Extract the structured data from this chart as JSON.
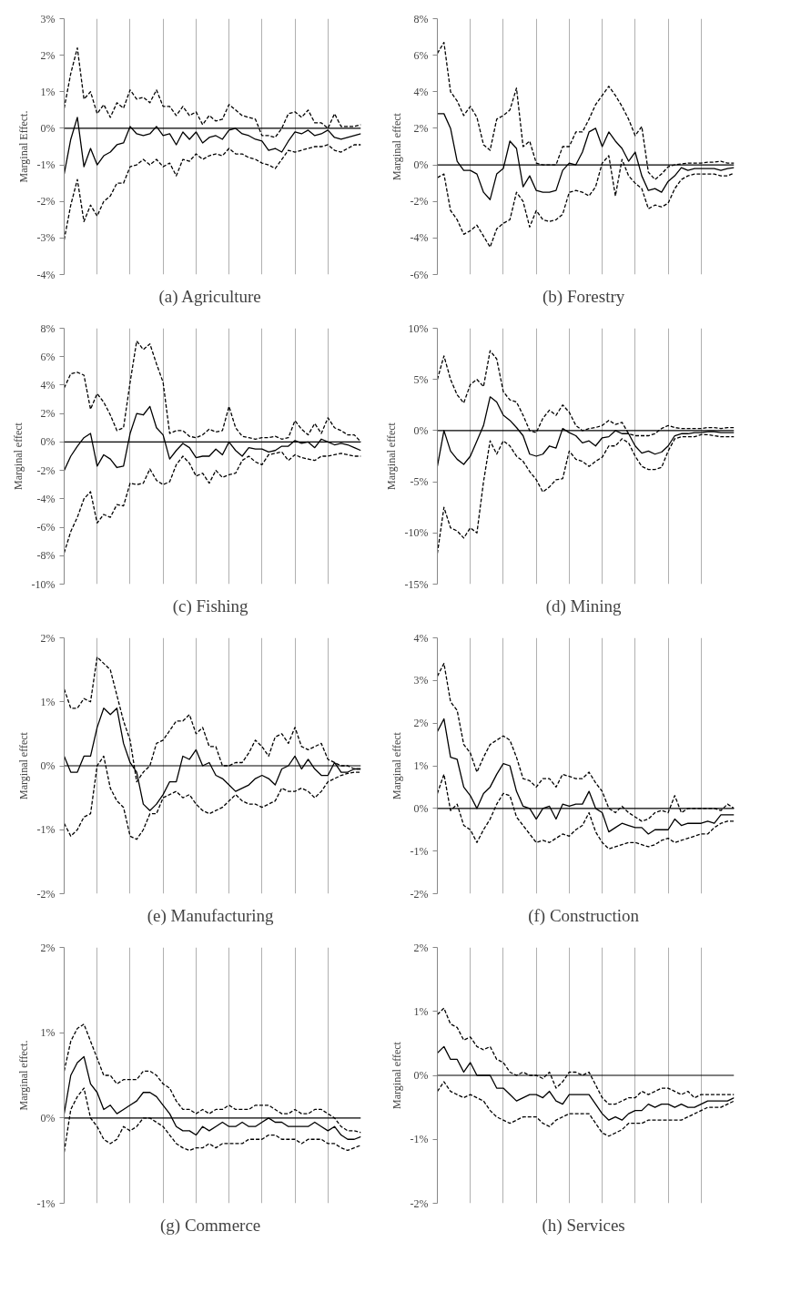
{
  "chart_data": [
    {
      "type": "line",
      "title": "(a)  Agriculture",
      "ylabel": "Marginal Effect.",
      "categories": [
        null,
        null,
        null,
        null,
        null,
        null,
        null,
        null,
        null,
        null,
        null,
        null,
        null,
        null,
        null,
        null,
        null,
        null,
        null,
        null,
        null,
        null,
        null,
        null,
        null,
        null,
        null,
        null,
        null,
        null,
        null,
        null,
        null,
        null,
        null,
        null,
        null,
        null,
        null,
        null,
        null,
        null,
        null,
        null,
        null,
        null
      ],
      "ylim": [
        -4,
        3
      ],
      "yticks": [
        {
          "value": -4,
          "label": "-4%"
        },
        {
          "value": -3,
          "label": "-3%"
        },
        {
          "value": -2,
          "label": "-2%"
        },
        {
          "value": -1,
          "label": "-1%"
        },
        {
          "value": 0,
          "label": "0%"
        },
        {
          "value": 1,
          "label": "1%"
        },
        {
          "value": 2,
          "label": "2%"
        },
        {
          "value": 3,
          "label": "3%"
        }
      ],
      "grid": "x",
      "ref_lines": [
        {
          "axis": "y",
          "value": 0,
          "color": "#000000"
        }
      ],
      "series": [
        {
          "color": "#000000",
          "line_style": "dashed",
          "values": [
            0.55,
            1.5,
            2.2,
            0.8,
            1.0,
            0.4,
            0.65,
            0.3,
            0.7,
            0.55,
            1.05,
            0.8,
            0.85,
            0.7,
            1.05,
            0.6,
            0.6,
            0.35,
            0.6,
            0.35,
            0.45,
            0.1,
            0.35,
            0.2,
            0.25,
            0.65,
            0.5,
            0.35,
            0.3,
            0.25,
            -0.2,
            -0.2,
            -0.25,
            0.0,
            0.4,
            0.45,
            0.3,
            0.5,
            0.15,
            0.15,
            0.0,
            0.4,
            0.05,
            0.05,
            0.05,
            0.1
          ]
        },
        {
          "color": "#000000",
          "line_style": "solid",
          "values": [
            -1.25,
            -0.3,
            0.3,
            -1.05,
            -0.55,
            -1.0,
            -0.75,
            -0.65,
            -0.45,
            -0.4,
            0.05,
            -0.15,
            -0.2,
            -0.15,
            0.05,
            -0.2,
            -0.15,
            -0.45,
            -0.1,
            -0.3,
            -0.1,
            -0.4,
            -0.25,
            -0.2,
            -0.3,
            -0.05,
            0.0,
            -0.15,
            -0.2,
            -0.3,
            -0.35,
            -0.6,
            -0.55,
            -0.65,
            -0.35,
            -0.1,
            -0.15,
            -0.05,
            -0.2,
            -0.15,
            -0.05,
            -0.25,
            -0.3,
            -0.25,
            -0.2,
            -0.15
          ]
        },
        {
          "color": "#000000",
          "line_style": "dashed",
          "values": [
            -3.05,
            -2.1,
            -1.4,
            -2.55,
            -2.1,
            -2.4,
            -2.0,
            -1.85,
            -1.5,
            -1.5,
            -1.05,
            -1.0,
            -0.85,
            -1.0,
            -0.85,
            -1.05,
            -0.95,
            -1.3,
            -0.85,
            -0.9,
            -0.7,
            -0.85,
            -0.75,
            -0.7,
            -0.75,
            -0.55,
            -0.7,
            -0.7,
            -0.8,
            -0.85,
            -0.95,
            -1.0,
            -1.1,
            -0.85,
            -0.6,
            -0.65,
            -0.6,
            -0.55,
            -0.5,
            -0.5,
            -0.45,
            -0.6,
            -0.65,
            -0.55,
            -0.45,
            -0.45
          ]
        }
      ]
    },
    {
      "type": "line",
      "title": "(b)  Forestry",
      "ylabel": "Marginal effect",
      "categories": [
        null,
        null,
        null,
        null,
        null,
        null,
        null,
        null,
        null,
        null,
        null,
        null,
        null,
        null,
        null,
        null,
        null,
        null,
        null,
        null,
        null,
        null,
        null,
        null,
        null,
        null,
        null,
        null,
        null,
        null,
        null,
        null,
        null,
        null,
        null,
        null,
        null,
        null,
        null,
        null,
        null,
        null,
        null,
        null,
        null,
        null
      ],
      "ylim": [
        -6,
        8
      ],
      "yticks": [
        {
          "value": -6,
          "label": "-6%"
        },
        {
          "value": -4,
          "label": "-4%"
        },
        {
          "value": -2,
          "label": "-2%"
        },
        {
          "value": 0,
          "label": "0%"
        },
        {
          "value": 2,
          "label": "2%"
        },
        {
          "value": 4,
          "label": "4%"
        },
        {
          "value": 6,
          "label": "6%"
        },
        {
          "value": 8,
          "label": "8%"
        }
      ],
      "grid": "x",
      "ref_lines": [
        {
          "axis": "y",
          "value": 0,
          "color": "#000000"
        }
      ],
      "series": [
        {
          "color": "#000000",
          "line_style": "dashed",
          "values": [
            6.1,
            6.7,
            4.0,
            3.5,
            2.7,
            3.2,
            2.6,
            1.1,
            0.8,
            2.5,
            2.7,
            3.0,
            4.2,
            1.0,
            1.3,
            0.1,
            0.0,
            0.0,
            0.0,
            1.0,
            1.0,
            1.8,
            1.8,
            2.5,
            3.3,
            3.8,
            4.3,
            3.8,
            3.2,
            2.5,
            1.6,
            2.1,
            -0.4,
            -0.8,
            -0.5,
            -0.1,
            0.0,
            0.05,
            0.1,
            0.1,
            0.1,
            0.15,
            0.15,
            0.2,
            0.1,
            0.1
          ]
        },
        {
          "color": "#000000",
          "line_style": "solid",
          "values": [
            2.8,
            2.8,
            2.0,
            0.2,
            -0.3,
            -0.3,
            -0.5,
            -1.5,
            -1.9,
            -0.5,
            -0.2,
            1.3,
            0.9,
            -1.2,
            -0.6,
            -1.4,
            -1.5,
            -1.5,
            -1.4,
            -0.3,
            0.1,
            0.0,
            0.7,
            1.8,
            2.0,
            1.0,
            1.8,
            1.3,
            0.9,
            0.2,
            0.7,
            -0.6,
            -1.4,
            -1.3,
            -1.5,
            -0.9,
            -0.6,
            -0.15,
            -0.3,
            -0.2,
            -0.2,
            -0.2,
            -0.2,
            -0.3,
            -0.2,
            -0.15
          ]
        },
        {
          "color": "#000000",
          "line_style": "dashed",
          "values": [
            -0.7,
            -0.5,
            -2.5,
            -3.0,
            -3.8,
            -3.6,
            -3.3,
            -3.9,
            -4.5,
            -3.5,
            -3.2,
            -3.0,
            -1.5,
            -2.0,
            -3.4,
            -2.5,
            -3.0,
            -3.1,
            -3.0,
            -2.7,
            -1.5,
            -1.4,
            -1.5,
            -1.7,
            -1.2,
            0.1,
            0.5,
            -1.7,
            0.3,
            -0.6,
            -1.0,
            -1.3,
            -2.4,
            -2.2,
            -2.3,
            -2.1,
            -1.3,
            -0.8,
            -0.6,
            -0.5,
            -0.5,
            -0.5,
            -0.5,
            -0.6,
            -0.6,
            -0.45
          ]
        }
      ]
    },
    {
      "type": "line",
      "title": "(c)  Fishing",
      "ylabel": "Marginal effect",
      "categories": [
        null,
        null,
        null,
        null,
        null,
        null,
        null,
        null,
        null,
        null,
        null,
        null,
        null,
        null,
        null,
        null,
        null,
        null,
        null,
        null,
        null,
        null,
        null,
        null,
        null,
        null,
        null,
        null,
        null,
        null,
        null,
        null,
        null,
        null,
        null,
        null,
        null,
        null,
        null,
        null,
        null,
        null,
        null,
        null,
        null,
        null
      ],
      "ylim": [
        -10,
        8
      ],
      "yticks": [
        {
          "value": -10,
          "label": "-10%"
        },
        {
          "value": -8,
          "label": "-8%"
        },
        {
          "value": -6,
          "label": "-6%"
        },
        {
          "value": -4,
          "label": "-4%"
        },
        {
          "value": -2,
          "label": "-2%"
        },
        {
          "value": 0,
          "label": "0%"
        },
        {
          "value": 2,
          "label": "2%"
        },
        {
          "value": 4,
          "label": "4%"
        },
        {
          "value": 6,
          "label": "6%"
        },
        {
          "value": 8,
          "label": "8%"
        }
      ],
      "grid": "x",
      "ref_lines": [
        {
          "axis": "y",
          "value": 0,
          "color": "#000000"
        }
      ],
      "series": [
        {
          "color": "#000000",
          "line_style": "dashed",
          "values": [
            3.8,
            4.8,
            4.9,
            4.7,
            2.3,
            3.4,
            2.8,
            1.9,
            0.8,
            1.0,
            4.2,
            7.1,
            6.5,
            6.9,
            5.5,
            4.2,
            0.6,
            0.8,
            0.8,
            0.4,
            0.3,
            0.5,
            0.9,
            0.7,
            0.8,
            2.5,
            1.0,
            0.4,
            0.3,
            0.2,
            0.3,
            0.3,
            0.4,
            0.2,
            0.3,
            1.5,
            0.9,
            0.5,
            1.3,
            0.6,
            1.7,
            1.0,
            0.8,
            0.5,
            0.5,
            0.0
          ]
        },
        {
          "color": "#000000",
          "line_style": "solid",
          "values": [
            -2.0,
            -1.0,
            -0.3,
            0.3,
            0.6,
            -1.7,
            -0.9,
            -1.2,
            -1.8,
            -1.7,
            0.6,
            2.0,
            1.9,
            2.5,
            1.0,
            0.5,
            -1.2,
            -0.6,
            -0.1,
            -0.4,
            -1.1,
            -1.0,
            -1.0,
            -0.5,
            -0.9,
            0.0,
            -0.6,
            -1.0,
            -0.4,
            -0.5,
            -0.5,
            -0.7,
            -0.6,
            -0.3,
            -0.3,
            0.1,
            -0.1,
            0.0,
            -0.4,
            0.2,
            0.0,
            -0.2,
            -0.1,
            -0.2,
            -0.4,
            -0.6
          ]
        },
        {
          "color": "#000000",
          "line_style": "dashed",
          "values": [
            -7.8,
            -6.3,
            -5.3,
            -4.0,
            -3.5,
            -5.7,
            -5.1,
            -5.3,
            -4.4,
            -4.5,
            -2.9,
            -3.0,
            -2.9,
            -1.9,
            -2.7,
            -3.0,
            -2.8,
            -1.6,
            -1.0,
            -1.5,
            -2.4,
            -2.2,
            -2.9,
            -2.0,
            -2.5,
            -2.3,
            -2.2,
            -1.3,
            -1.0,
            -1.4,
            -1.6,
            -0.9,
            -0.8,
            -0.7,
            -1.3,
            -0.9,
            -1.1,
            -1.2,
            -1.3,
            -1.0,
            -1.0,
            -0.9,
            -0.8,
            -0.9,
            -1.0,
            -1.0
          ]
        }
      ]
    },
    {
      "type": "line",
      "title": "(d)  Mining",
      "ylabel": "Marginal effect",
      "categories": [
        null,
        null,
        null,
        null,
        null,
        null,
        null,
        null,
        null,
        null,
        null,
        null,
        null,
        null,
        null,
        null,
        null,
        null,
        null,
        null,
        null,
        null,
        null,
        null,
        null,
        null,
        null,
        null,
        null,
        null,
        null,
        null,
        null,
        null,
        null,
        null,
        null,
        null,
        null,
        null,
        null,
        null,
        null,
        null,
        null,
        null
      ],
      "ylim": [
        -15,
        10
      ],
      "yticks": [
        {
          "value": -15,
          "label": "-15%"
        },
        {
          "value": -10,
          "label": "-10%"
        },
        {
          "value": -5,
          "label": "-5%"
        },
        {
          "value": 0,
          "label": "0%"
        },
        {
          "value": 5,
          "label": "5%"
        },
        {
          "value": 10,
          "label": "10%"
        }
      ],
      "grid": "x",
      "ref_lines": [
        {
          "axis": "y",
          "value": 0,
          "color": "#000000"
        }
      ],
      "series": [
        {
          "color": "#000000",
          "line_style": "dashed",
          "values": [
            5.0,
            7.3,
            5.0,
            3.5,
            2.7,
            4.5,
            5.0,
            4.3,
            7.8,
            7.0,
            3.8,
            3.0,
            2.8,
            1.5,
            0.0,
            -0.2,
            1.2,
            2.0,
            1.5,
            2.5,
            1.8,
            0.5,
            0.0,
            0.2,
            0.3,
            0.5,
            1.0,
            0.6,
            0.8,
            -0.3,
            -0.5,
            -0.5,
            -0.5,
            -0.3,
            0.2,
            0.5,
            0.3,
            0.2,
            0.2,
            0.2,
            0.2,
            0.3,
            0.3,
            0.2,
            0.3,
            0.3
          ]
        },
        {
          "color": "#000000",
          "line_style": "solid",
          "values": [
            -3.5,
            0.0,
            -2.0,
            -2.8,
            -3.3,
            -2.5,
            -1.0,
            0.5,
            3.3,
            2.8,
            1.5,
            1.0,
            0.3,
            -0.5,
            -2.3,
            -2.5,
            -2.3,
            -1.5,
            -1.7,
            0.2,
            -0.2,
            -0.5,
            -1.2,
            -1.0,
            -1.5,
            -0.7,
            -0.6,
            0.0,
            -0.3,
            -0.3,
            -1.5,
            -2.2,
            -2.0,
            -2.3,
            -2.1,
            -1.5,
            -0.5,
            -0.3,
            -0.3,
            -0.2,
            -0.2,
            -0.1,
            -0.1,
            -0.2,
            -0.2,
            -0.2
          ]
        },
        {
          "color": "#000000",
          "line_style": "dashed",
          "values": [
            -12.0,
            -7.5,
            -9.5,
            -9.8,
            -10.5,
            -9.5,
            -10.0,
            -5.0,
            -1.0,
            -2.3,
            -1.0,
            -1.5,
            -2.5,
            -3.0,
            -4.0,
            -4.8,
            -6.0,
            -5.5,
            -4.8,
            -4.7,
            -2.0,
            -2.8,
            -3.0,
            -3.5,
            -3.0,
            -2.6,
            -1.5,
            -1.5,
            -0.8,
            -1.2,
            -2.5,
            -3.5,
            -3.8,
            -3.8,
            -3.6,
            -2.0,
            -0.8,
            -0.6,
            -0.6,
            -0.6,
            -0.4,
            -0.4,
            -0.5,
            -0.6,
            -0.6,
            -0.6
          ]
        }
      ]
    },
    {
      "type": "line",
      "title": "(e)  Manufacturing",
      "ylabel": "Marginal effect",
      "categories": [
        null,
        null,
        null,
        null,
        null,
        null,
        null,
        null,
        null,
        null,
        null,
        null,
        null,
        null,
        null,
        null,
        null,
        null,
        null,
        null,
        null,
        null,
        null,
        null,
        null,
        null,
        null,
        null,
        null,
        null,
        null,
        null,
        null,
        null,
        null,
        null,
        null,
        null,
        null,
        null,
        null,
        null,
        null,
        null,
        null,
        null
      ],
      "ylim": [
        -2,
        2
      ],
      "yticks": [
        {
          "value": -2,
          "label": "-2%"
        },
        {
          "value": -1,
          "label": "-1%"
        },
        {
          "value": 0,
          "label": "0%"
        },
        {
          "value": 1,
          "label": "1%"
        },
        {
          "value": 2,
          "label": "2%"
        }
      ],
      "grid": "x",
      "ref_lines": [
        {
          "axis": "y",
          "value": 0,
          "color": "#000000"
        }
      ],
      "series": [
        {
          "color": "#000000",
          "line_style": "dashed",
          "values": [
            1.2,
            0.9,
            0.9,
            1.05,
            1.0,
            1.7,
            1.6,
            1.5,
            1.1,
            0.7,
            0.4,
            -0.25,
            -0.1,
            0.0,
            0.35,
            0.4,
            0.55,
            0.7,
            0.7,
            0.8,
            0.5,
            0.6,
            0.3,
            0.3,
            0.0,
            0.0,
            0.05,
            0.05,
            0.2,
            0.4,
            0.3,
            0.15,
            0.45,
            0.5,
            0.35,
            0.6,
            0.3,
            0.25,
            0.3,
            0.35,
            0.1,
            0.05,
            0.0,
            0.0,
            -0.05,
            -0.05
          ]
        },
        {
          "color": "#000000",
          "line_style": "solid",
          "values": [
            0.15,
            -0.1,
            -0.1,
            0.15,
            0.15,
            0.6,
            0.9,
            0.8,
            0.9,
            0.35,
            0.05,
            -0.1,
            -0.6,
            -0.7,
            -0.6,
            -0.45,
            -0.25,
            -0.25,
            0.15,
            0.1,
            0.25,
            0.0,
            0.05,
            -0.15,
            -0.2,
            -0.3,
            -0.4,
            -0.35,
            -0.3,
            -0.2,
            -0.15,
            -0.2,
            -0.3,
            -0.05,
            0.0,
            0.15,
            -0.05,
            0.1,
            -0.05,
            -0.15,
            -0.15,
            0.05,
            -0.1,
            -0.1,
            -0.05,
            -0.05
          ]
        },
        {
          "color": "#000000",
          "line_style": "dashed",
          "values": [
            -0.9,
            -1.1,
            -1.0,
            -0.8,
            -0.75,
            0.0,
            0.15,
            -0.35,
            -0.55,
            -0.65,
            -1.1,
            -1.15,
            -1.0,
            -0.75,
            -0.75,
            -0.5,
            -0.45,
            -0.4,
            -0.5,
            -0.45,
            -0.6,
            -0.7,
            -0.75,
            -0.7,
            -0.65,
            -0.55,
            -0.45,
            -0.55,
            -0.6,
            -0.6,
            -0.65,
            -0.6,
            -0.55,
            -0.35,
            -0.4,
            -0.4,
            -0.35,
            -0.4,
            -0.5,
            -0.4,
            -0.25,
            -0.2,
            -0.15,
            -0.12,
            -0.1,
            -0.1
          ]
        }
      ]
    },
    {
      "type": "line",
      "title": "(f)  Construction",
      "ylabel": "Marginal effect",
      "categories": [
        null,
        null,
        null,
        null,
        null,
        null,
        null,
        null,
        null,
        null,
        null,
        null,
        null,
        null,
        null,
        null,
        null,
        null,
        null,
        null,
        null,
        null,
        null,
        null,
        null,
        null,
        null,
        null,
        null,
        null,
        null,
        null,
        null,
        null,
        null,
        null,
        null,
        null,
        null,
        null,
        null,
        null,
        null,
        null,
        null,
        null
      ],
      "ylim": [
        -2,
        4
      ],
      "yticks": [
        {
          "value": -2,
          "label": "-2%"
        },
        {
          "value": -1,
          "label": "-1%"
        },
        {
          "value": 0,
          "label": "0%"
        },
        {
          "value": 1,
          "label": "1%"
        },
        {
          "value": 2,
          "label": "2%"
        },
        {
          "value": 3,
          "label": "3%"
        },
        {
          "value": 4,
          "label": "4%"
        }
      ],
      "grid": "x",
      "ref_lines": [
        {
          "axis": "y",
          "value": 0,
          "color": "#000000"
        }
      ],
      "series": [
        {
          "color": "#000000",
          "line_style": "dashed",
          "values": [
            3.1,
            3.4,
            2.5,
            2.3,
            1.5,
            1.3,
            0.85,
            1.2,
            1.5,
            1.6,
            1.7,
            1.6,
            1.2,
            0.7,
            0.65,
            0.5,
            0.7,
            0.7,
            0.5,
            0.8,
            0.75,
            0.7,
            0.7,
            0.85,
            0.6,
            0.4,
            0.0,
            -0.1,
            0.05,
            -0.1,
            -0.2,
            -0.3,
            -0.25,
            -0.1,
            -0.05,
            -0.1,
            0.3,
            -0.1,
            0.0,
            0.0,
            0.0,
            0.0,
            0.0,
            -0.05,
            0.1,
            0.0
          ]
        },
        {
          "color": "#000000",
          "line_style": "solid",
          "values": [
            1.8,
            2.1,
            1.2,
            1.15,
            0.5,
            0.3,
            0.0,
            0.35,
            0.5,
            0.8,
            1.05,
            1.0,
            0.4,
            0.05,
            0.0,
            -0.25,
            0.0,
            0.05,
            -0.25,
            0.1,
            0.05,
            0.1,
            0.1,
            0.4,
            0.0,
            -0.1,
            -0.55,
            -0.45,
            -0.35,
            -0.4,
            -0.45,
            -0.45,
            -0.6,
            -0.5,
            -0.5,
            -0.5,
            -0.25,
            -0.4,
            -0.35,
            -0.35,
            -0.35,
            -0.3,
            -0.35,
            -0.15,
            -0.15,
            -0.15
          ]
        },
        {
          "color": "#000000",
          "line_style": "dashed",
          "values": [
            0.35,
            0.8,
            -0.05,
            0.1,
            -0.4,
            -0.5,
            -0.8,
            -0.5,
            -0.25,
            0.1,
            0.35,
            0.3,
            -0.2,
            -0.4,
            -0.6,
            -0.8,
            -0.75,
            -0.8,
            -0.7,
            -0.6,
            -0.65,
            -0.5,
            -0.4,
            -0.1,
            -0.55,
            -0.8,
            -0.95,
            -0.9,
            -0.85,
            -0.8,
            -0.8,
            -0.85,
            -0.9,
            -0.85,
            -0.75,
            -0.7,
            -0.8,
            -0.75,
            -0.7,
            -0.65,
            -0.6,
            -0.6,
            -0.45,
            -0.35,
            -0.3,
            -0.3
          ]
        }
      ]
    },
    {
      "type": "line",
      "title": "(g)  Commerce",
      "ylabel": "Marginal effect.",
      "categories": [
        null,
        null,
        null,
        null,
        null,
        null,
        null,
        null,
        null,
        null,
        null,
        null,
        null,
        null,
        null,
        null,
        null,
        null,
        null,
        null,
        null,
        null,
        null,
        null,
        null,
        null,
        null,
        null,
        null,
        null,
        null,
        null,
        null,
        null,
        null,
        null,
        null,
        null,
        null,
        null,
        null,
        null,
        null,
        null,
        null,
        null
      ],
      "ylim": [
        -1,
        2
      ],
      "yticks": [
        {
          "value": -1,
          "label": "-1%"
        },
        {
          "value": 0,
          "label": "0%"
        },
        {
          "value": 1,
          "label": "1%"
        },
        {
          "value": 2,
          "label": "2%"
        }
      ],
      "grid": "x",
      "ref_lines": [
        {
          "axis": "y",
          "value": 0,
          "color": "#000000"
        }
      ],
      "series": [
        {
          "color": "#000000",
          "line_style": "dashed",
          "values": [
            0.55,
            0.9,
            1.05,
            1.1,
            0.9,
            0.7,
            0.5,
            0.5,
            0.4,
            0.45,
            0.45,
            0.45,
            0.55,
            0.55,
            0.5,
            0.4,
            0.35,
            0.2,
            0.1,
            0.1,
            0.05,
            0.1,
            0.05,
            0.1,
            0.1,
            0.15,
            0.1,
            0.1,
            0.1,
            0.15,
            0.15,
            0.15,
            0.1,
            0.05,
            0.05,
            0.1,
            0.05,
            0.05,
            0.1,
            0.1,
            0.05,
            0.0,
            -0.1,
            -0.15,
            -0.15,
            -0.17
          ]
        },
        {
          "color": "#000000",
          "line_style": "solid",
          "values": [
            0.05,
            0.5,
            0.65,
            0.72,
            0.4,
            0.3,
            0.1,
            0.15,
            0.05,
            0.1,
            0.15,
            0.2,
            0.3,
            0.3,
            0.25,
            0.15,
            0.05,
            -0.1,
            -0.15,
            -0.15,
            -0.2,
            -0.1,
            -0.15,
            -0.1,
            -0.05,
            -0.1,
            -0.1,
            -0.05,
            -0.1,
            -0.1,
            -0.05,
            0.0,
            -0.05,
            -0.05,
            -0.1,
            -0.1,
            -0.1,
            -0.1,
            -0.05,
            -0.1,
            -0.15,
            -0.1,
            -0.2,
            -0.25,
            -0.25,
            -0.22
          ]
        },
        {
          "color": "#000000",
          "line_style": "dashed",
          "values": [
            -0.4,
            0.1,
            0.25,
            0.35,
            0.0,
            -0.1,
            -0.25,
            -0.3,
            -0.25,
            -0.1,
            -0.15,
            -0.1,
            0.0,
            0.0,
            -0.05,
            -0.1,
            -0.2,
            -0.3,
            -0.35,
            -0.38,
            -0.35,
            -0.35,
            -0.3,
            -0.35,
            -0.3,
            -0.3,
            -0.3,
            -0.3,
            -0.25,
            -0.25,
            -0.25,
            -0.2,
            -0.2,
            -0.25,
            -0.25,
            -0.25,
            -0.3,
            -0.25,
            -0.25,
            -0.25,
            -0.3,
            -0.3,
            -0.35,
            -0.38,
            -0.35,
            -0.32
          ]
        }
      ]
    },
    {
      "type": "line",
      "title": "(h)  Services",
      "ylabel": "Marginal effect",
      "categories": [
        null,
        null,
        null,
        null,
        null,
        null,
        null,
        null,
        null,
        null,
        null,
        null,
        null,
        null,
        null,
        null,
        null,
        null,
        null,
        null,
        null,
        null,
        null,
        null,
        null,
        null,
        null,
        null,
        null,
        null,
        null,
        null,
        null,
        null,
        null,
        null,
        null,
        null,
        null,
        null,
        null,
        null,
        null,
        null,
        null,
        null
      ],
      "ylim": [
        -2,
        2
      ],
      "yticks": [
        {
          "value": -2,
          "label": "-2%"
        },
        {
          "value": -1,
          "label": "-1%"
        },
        {
          "value": 0,
          "label": "0%"
        },
        {
          "value": 1,
          "label": "1%"
        },
        {
          "value": 2,
          "label": "2%"
        }
      ],
      "grid": "x",
      "ref_lines": [
        {
          "axis": "y",
          "value": 0,
          "color": "#000000"
        }
      ],
      "series": [
        {
          "color": "#000000",
          "line_style": "dashed",
          "values": [
            0.95,
            1.05,
            0.8,
            0.75,
            0.55,
            0.6,
            0.45,
            0.4,
            0.45,
            0.25,
            0.2,
            0.05,
            0.0,
            0.05,
            0.0,
            0.0,
            -0.05,
            0.05,
            -0.2,
            -0.1,
            0.05,
            0.05,
            0.0,
            0.05,
            -0.15,
            -0.35,
            -0.45,
            -0.45,
            -0.4,
            -0.35,
            -0.35,
            -0.25,
            -0.3,
            -0.25,
            -0.2,
            -0.2,
            -0.25,
            -0.3,
            -0.25,
            -0.35,
            -0.3,
            -0.3,
            -0.3,
            -0.3,
            -0.3,
            -0.3
          ]
        },
        {
          "color": "#000000",
          "line_style": "solid",
          "values": [
            0.35,
            0.45,
            0.25,
            0.25,
            0.05,
            0.2,
            0.0,
            0.0,
            0.0,
            -0.2,
            -0.2,
            -0.3,
            -0.4,
            -0.35,
            -0.3,
            -0.3,
            -0.35,
            -0.25,
            -0.4,
            -0.45,
            -0.3,
            -0.3,
            -0.3,
            -0.3,
            -0.45,
            -0.6,
            -0.7,
            -0.65,
            -0.7,
            -0.6,
            -0.55,
            -0.55,
            -0.45,
            -0.5,
            -0.45,
            -0.45,
            -0.5,
            -0.45,
            -0.5,
            -0.5,
            -0.45,
            -0.4,
            -0.4,
            -0.4,
            -0.4,
            -0.35
          ]
        },
        {
          "color": "#000000",
          "line_style": "dashed",
          "values": [
            -0.25,
            -0.1,
            -0.25,
            -0.3,
            -0.35,
            -0.3,
            -0.35,
            -0.4,
            -0.55,
            -0.65,
            -0.7,
            -0.75,
            -0.7,
            -0.65,
            -0.65,
            -0.65,
            -0.75,
            -0.8,
            -0.7,
            -0.65,
            -0.6,
            -0.6,
            -0.6,
            -0.6,
            -0.75,
            -0.9,
            -0.95,
            -0.9,
            -0.85,
            -0.75,
            -0.75,
            -0.75,
            -0.7,
            -0.7,
            -0.7,
            -0.7,
            -0.7,
            -0.7,
            -0.65,
            -0.6,
            -0.55,
            -0.5,
            -0.5,
            -0.5,
            -0.45,
            -0.4
          ]
        }
      ]
    }
  ]
}
